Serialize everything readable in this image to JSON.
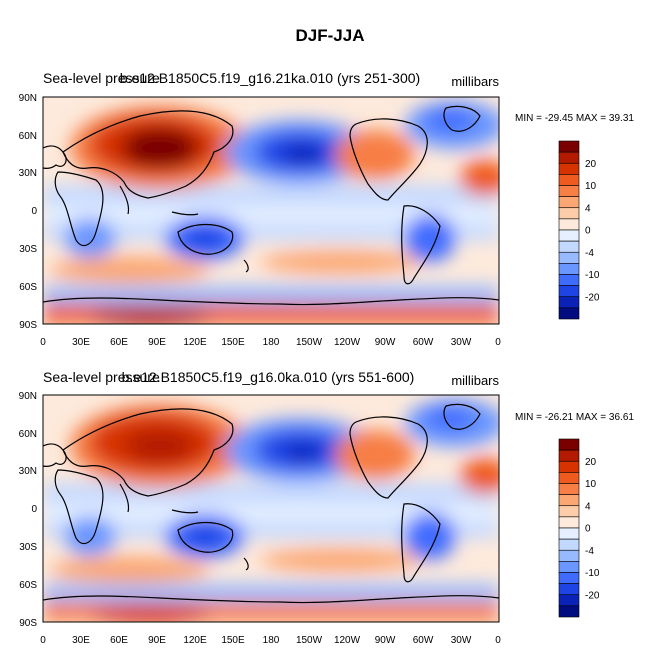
{
  "figure_title": "DJF-JJA",
  "chart_data": [
    {
      "type": "heatmap",
      "title_left": "Sea-level pressure",
      "title_center": "b.e12.B1850C5.f19_g16.21ka.010 (yrs 251-300)",
      "units": "millibars",
      "min_label": "MIN = -29.45  MAX =  39.31",
      "min": -29.45,
      "max": 39.31,
      "xticks": [
        "0",
        "30E",
        "60E",
        "90E",
        "120E",
        "150E",
        "180",
        "150W",
        "120W",
        "90W",
        "60W",
        "30W",
        "0"
      ],
      "yticks": [
        "90N",
        "60N",
        "30N",
        "0",
        "30S",
        "60S",
        "90S"
      ]
    },
    {
      "type": "heatmap",
      "title_left": "Sea-level pressure",
      "title_center": "b.e12.B1850C5.f19_g16.0ka.010 (yrs 551-600)",
      "units": "millibars",
      "min_label": "MIN = -26.21  MAX =  36.61",
      "min": -26.21,
      "max": 36.61,
      "xticks": [
        "0",
        "30E",
        "60E",
        "90E",
        "120E",
        "150E",
        "180",
        "150W",
        "120W",
        "90W",
        "60W",
        "30W",
        "0"
      ],
      "yticks": [
        "90N",
        "60N",
        "30N",
        "0",
        "30S",
        "60S",
        "90S"
      ]
    }
  ],
  "colorbar": {
    "labels": [
      "20",
      "10",
      "4",
      "0",
      "-4",
      "-10",
      "-20"
    ],
    "colors": [
      "#7a0000",
      "#b31a00",
      "#d63300",
      "#ef5a1e",
      "#f77e45",
      "#fba774",
      "#fdcca8",
      "#fdeadc",
      "#e5efff",
      "#c3d8ff",
      "#97baff",
      "#6a96ff",
      "#3f6cff",
      "#1f44e6",
      "#0a22b8",
      "#000c80"
    ]
  },
  "colors": {
    "land_line": "#000000",
    "frame": "#000000"
  }
}
